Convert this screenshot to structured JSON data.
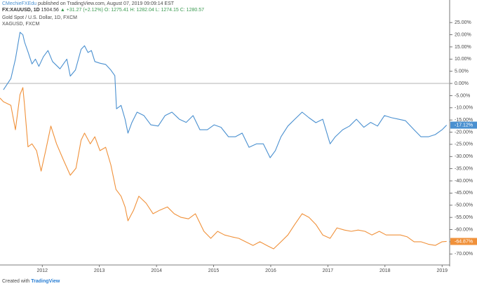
{
  "chart_data": {
    "type": "line",
    "header": {
      "author": "CMechieFXEdu",
      "published": "published on TradingView.com, August 07, 2019 09:09:14 EST",
      "symbol": "FX:XAUUSD, 1D",
      "price": "1504.56",
      "change": "▲ +31.27 (+2.12%)",
      "o": "O: 1275.41",
      "h": "H: 1282.04",
      "l": "L: 1274.15",
      "c": "C: 1280.57"
    },
    "series": [
      {
        "name": "Gold Spot / U.S. Dollar, 1D, FXCM",
        "color": "#4a90d0",
        "last_label": "-17.12%",
        "x": [
          2011.32,
          2011.45,
          2011.53,
          2011.61,
          2011.66,
          2011.69,
          2011.75,
          2011.82,
          2011.88,
          2011.94,
          2012.02,
          2012.1,
          2012.18,
          2012.31,
          2012.43,
          2012.49,
          2012.58,
          2012.68,
          2012.74,
          2012.8,
          2012.86,
          2012.92,
          2013.01,
          2013.11,
          2013.2,
          2013.27,
          2013.3,
          2013.38,
          2013.45,
          2013.5,
          2013.57,
          2013.66,
          2013.78,
          2013.9,
          2014.03,
          2014.15,
          2014.27,
          2014.4,
          2014.52,
          2014.64,
          2014.76,
          2014.89,
          2015.01,
          2015.13,
          2015.26,
          2015.38,
          2015.5,
          2015.62,
          2015.75,
          2015.87,
          2015.99,
          2016.08,
          2016.18,
          2016.3,
          2016.42,
          2016.55,
          2016.67,
          2016.79,
          2016.91,
          2017.04,
          2017.13,
          2017.26,
          2017.38,
          2017.5,
          2017.63,
          2017.75,
          2017.87,
          2017.99,
          2018.12,
          2018.24,
          2018.36,
          2018.51,
          2018.63,
          2018.76,
          2018.88,
          2019.0,
          2019.08
        ],
        "values": [
          -2.6,
          2,
          10,
          21,
          20,
          17,
          13,
          8,
          10,
          7,
          11,
          13.5,
          9,
          6,
          10,
          3,
          5.5,
          14,
          15.5,
          12.7,
          13.5,
          9,
          8.3,
          7.8,
          5.5,
          3.2,
          -10.4,
          -9,
          -14.7,
          -20.4,
          -16,
          -11.8,
          -13.2,
          -17,
          -17.5,
          -13.2,
          -11.8,
          -14.7,
          -16,
          -13.2,
          -19,
          -19,
          -17,
          -18,
          -21.9,
          -21.9,
          -20.4,
          -26.2,
          -24.8,
          -24.8,
          -30.5,
          -27.6,
          -21.9,
          -17.5,
          -14.7,
          -11.8,
          -14.1,
          -16.1,
          -14.7,
          -24.8,
          -21.9,
          -19,
          -17.5,
          -14.7,
          -18,
          -16,
          -17.5,
          -13.2,
          -14.1,
          -14.7,
          -15.3,
          -19,
          -21.9,
          -21.9,
          -21,
          -19,
          -17.12
        ]
      },
      {
        "name": "XAGUSD, FXCM",
        "color": "#f0913a",
        "last_label": "-64.87%",
        "x": [
          2011.26,
          2011.32,
          2011.45,
          2011.53,
          2011.61,
          2011.66,
          2011.69,
          2011.75,
          2011.82,
          2011.9,
          2011.98,
          2012.06,
          2012.15,
          2012.25,
          2012.37,
          2012.49,
          2012.59,
          2012.68,
          2012.74,
          2012.84,
          2012.92,
          2013.01,
          2013.11,
          2013.2,
          2013.29,
          2013.38,
          2013.45,
          2013.5,
          2013.6,
          2013.69,
          2013.82,
          2013.94,
          2014.06,
          2014.19,
          2014.31,
          2014.43,
          2014.56,
          2014.68,
          2014.83,
          2014.95,
          2015.07,
          2015.19,
          2015.32,
          2015.44,
          2015.56,
          2015.69,
          2015.81,
          2015.93,
          2016.05,
          2016.18,
          2016.3,
          2016.42,
          2016.55,
          2016.67,
          2016.79,
          2016.91,
          2017.04,
          2017.16,
          2017.29,
          2017.41,
          2017.53,
          2017.65,
          2017.77,
          2017.9,
          2018.02,
          2018.14,
          2018.27,
          2018.39,
          2018.51,
          2018.63,
          2018.76,
          2018.88,
          2019.0,
          2019.08
        ],
        "values": [
          -6,
          -7.5,
          -9,
          -19,
          -4.6,
          -1.7,
          -9,
          -26,
          -24.8,
          -27.6,
          -36,
          -27.6,
          -17.5,
          -24.8,
          -31.4,
          -37.7,
          -34.8,
          -23.3,
          -20.4,
          -24.8,
          -21.9,
          -27.6,
          -26.2,
          -33.4,
          -43.5,
          -46.3,
          -50.7,
          -56.4,
          -52,
          -46.3,
          -49.2,
          -53.5,
          -52,
          -50.7,
          -53.5,
          -55,
          -55.6,
          -53.5,
          -60.7,
          -63.6,
          -60.7,
          -62.2,
          -63,
          -63.6,
          -65,
          -66.5,
          -65,
          -66.5,
          -67.9,
          -65,
          -62.2,
          -57.9,
          -53.5,
          -55,
          -57.9,
          -62.2,
          -63.6,
          -59.3,
          -60.2,
          -60.7,
          -60.2,
          -60.7,
          -62.2,
          -60.7,
          -62.2,
          -62.2,
          -62.2,
          -63,
          -65,
          -65,
          -66,
          -66.5,
          -65,
          -64.87
        ]
      }
    ],
    "xlim": [
      2011.26,
      2019.12
    ],
    "xticks": [
      2012,
      2013,
      2014,
      2015,
      2016,
      2017,
      2018,
      2019
    ],
    "ylim": [
      -72.8,
      28.5
    ],
    "yticks": [
      {
        "value": 25,
        "label": "25.00%"
      },
      {
        "value": 20,
        "label": "20.00%"
      },
      {
        "value": 15,
        "label": "15.00%"
      },
      {
        "value": 10,
        "label": "10.00%"
      },
      {
        "value": 5,
        "label": "5.00%"
      },
      {
        "value": 0,
        "label": "0.00%"
      },
      {
        "value": -5,
        "label": "-5.00%"
      },
      {
        "value": -10,
        "label": "-10.00%"
      },
      {
        "value": -15,
        "label": "-15.00%"
      },
      {
        "value": -20,
        "label": "-20.00%"
      },
      {
        "value": -25,
        "label": "-25.00%"
      },
      {
        "value": -30,
        "label": "-30.00%"
      },
      {
        "value": -35,
        "label": "-35.00%"
      },
      {
        "value": -40,
        "label": "-40.00%"
      },
      {
        "value": -45,
        "label": "-45.00%"
      },
      {
        "value": -50,
        "label": "-50.00%"
      },
      {
        "value": -55,
        "label": "-55.00%"
      },
      {
        "value": -60,
        "label": "-60.00%"
      },
      {
        "value": -65,
        "label": "-65.00%"
      },
      {
        "value": -70,
        "label": "-70.00%"
      }
    ],
    "footer": "Created with",
    "footer_brand": "TradingView"
  }
}
